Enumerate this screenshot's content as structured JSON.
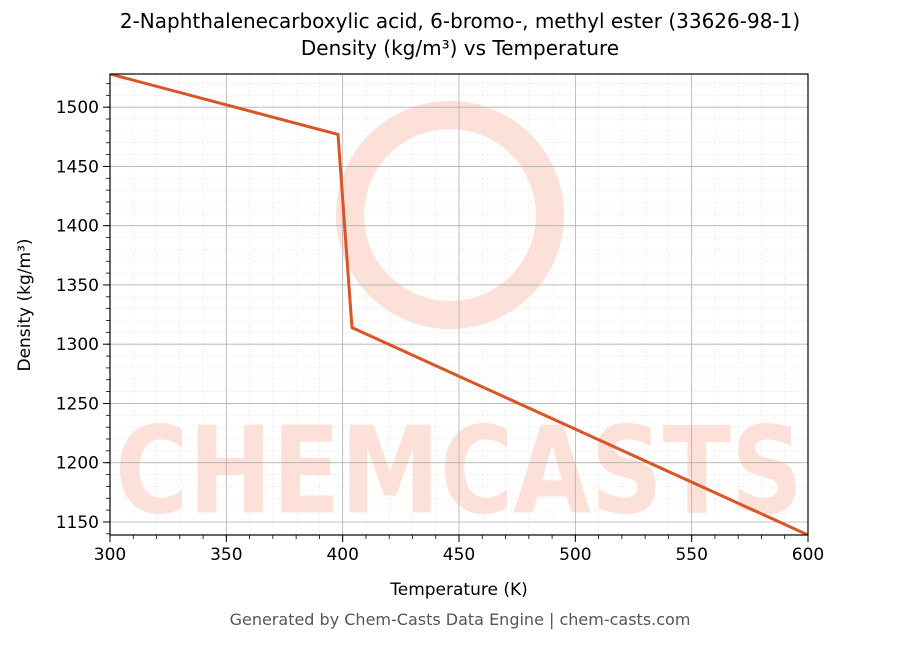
{
  "chart_data": {
    "type": "line",
    "title": "2-Naphthalenecarboxylic acid, 6-bromo-, methyl ester (33626-98-1)",
    "subtitle": "Density (kg/m³) vs Temperature",
    "x_label": "Temperature (K)",
    "y_label": "Density (kg/m³)",
    "footer": "Generated by Chem-Casts Data Engine | chem-casts.com",
    "watermark": "CHEMCASTS",
    "x": [
      300,
      398,
      404,
      600
    ],
    "series": [
      {
        "name": "Density",
        "color": "#d95525",
        "values": [
          1528,
          1477,
          1314,
          1139
        ]
      }
    ],
    "xlim": [
      300,
      600
    ],
    "xticks": [
      300,
      350,
      400,
      450,
      500,
      550,
      600
    ],
    "ylim": [
      1139,
      1528
    ],
    "yticks": [
      1150,
      1200,
      1250,
      1300,
      1350,
      1400,
      1450,
      1500
    ],
    "grid": true,
    "minor_grid": true
  }
}
